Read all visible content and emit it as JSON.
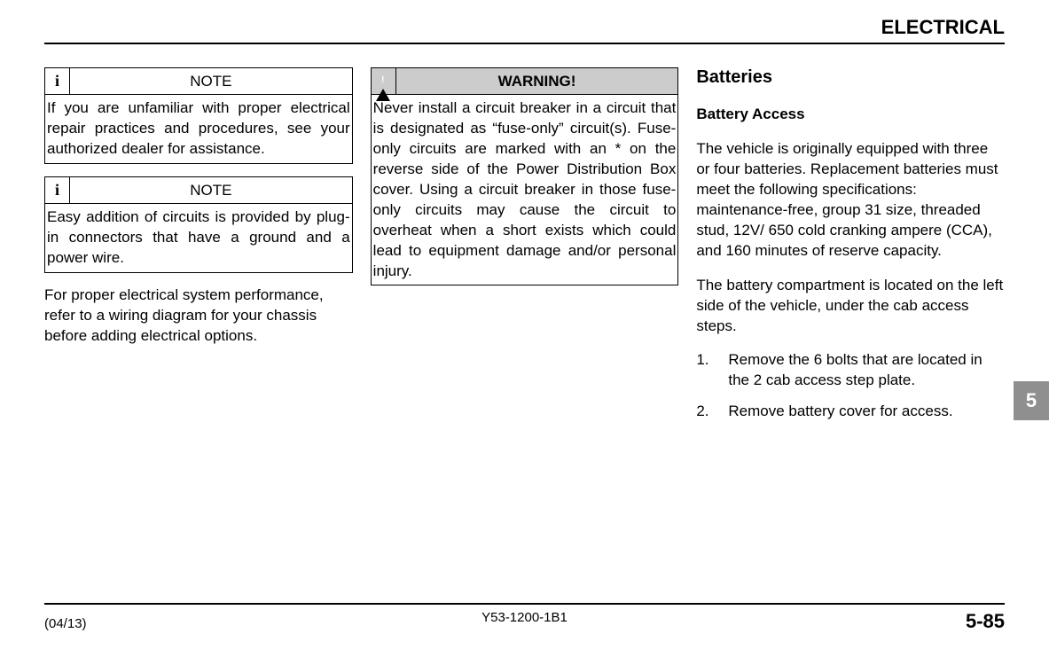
{
  "header": {
    "section": "ELECTRICAL"
  },
  "col1": {
    "note1": {
      "label": "NOTE",
      "icon": "i",
      "body": "If you are unfamiliar with proper electrical repair practices and procedures, see your authorized dealer for assistance."
    },
    "note2": {
      "label": "NOTE",
      "icon": "i",
      "body": "Easy addition of circuits is provided by plug-in connectors that have a ground and a power wire."
    },
    "para": "For proper electrical system performance, refer to a wiring diagram for your chassis before adding electrical options."
  },
  "col2": {
    "warning": {
      "label": "WARNING!",
      "body": "Never install a circuit breaker in a circuit that is designated as “fuse-only” circuit(s). Fuse-only circuits are marked with an * on the reverse side of the Power Distribution Box cover. Using a circuit breaker in those fuse-only circuits may cause the circuit to overheat when a short exists which could lead to equipment damage and/or personal injury."
    }
  },
  "col3": {
    "title": "Batteries",
    "subtitle": "Battery Access",
    "para1": "The vehicle is originally equipped with three or four batteries. Replacement batteries must meet the following specifications: maintenance-free, group 31 size, threaded stud, 12V/ 650 cold cranking ampere (CCA), and 160 minutes of reserve capacity.",
    "para2": "The battery compartment is located on the left side of the vehicle, under the cab access steps.",
    "list": {
      "item1_num": "1.",
      "item1": "Remove the 6 bolts that are located in the 2 cab access step plate.",
      "item2_num": "2.",
      "item2": "Remove battery cover for access."
    }
  },
  "tab": {
    "chapter": "5"
  },
  "footer": {
    "left": "(04/13)",
    "center": "Y53-1200-1B1",
    "right": "5-85"
  }
}
